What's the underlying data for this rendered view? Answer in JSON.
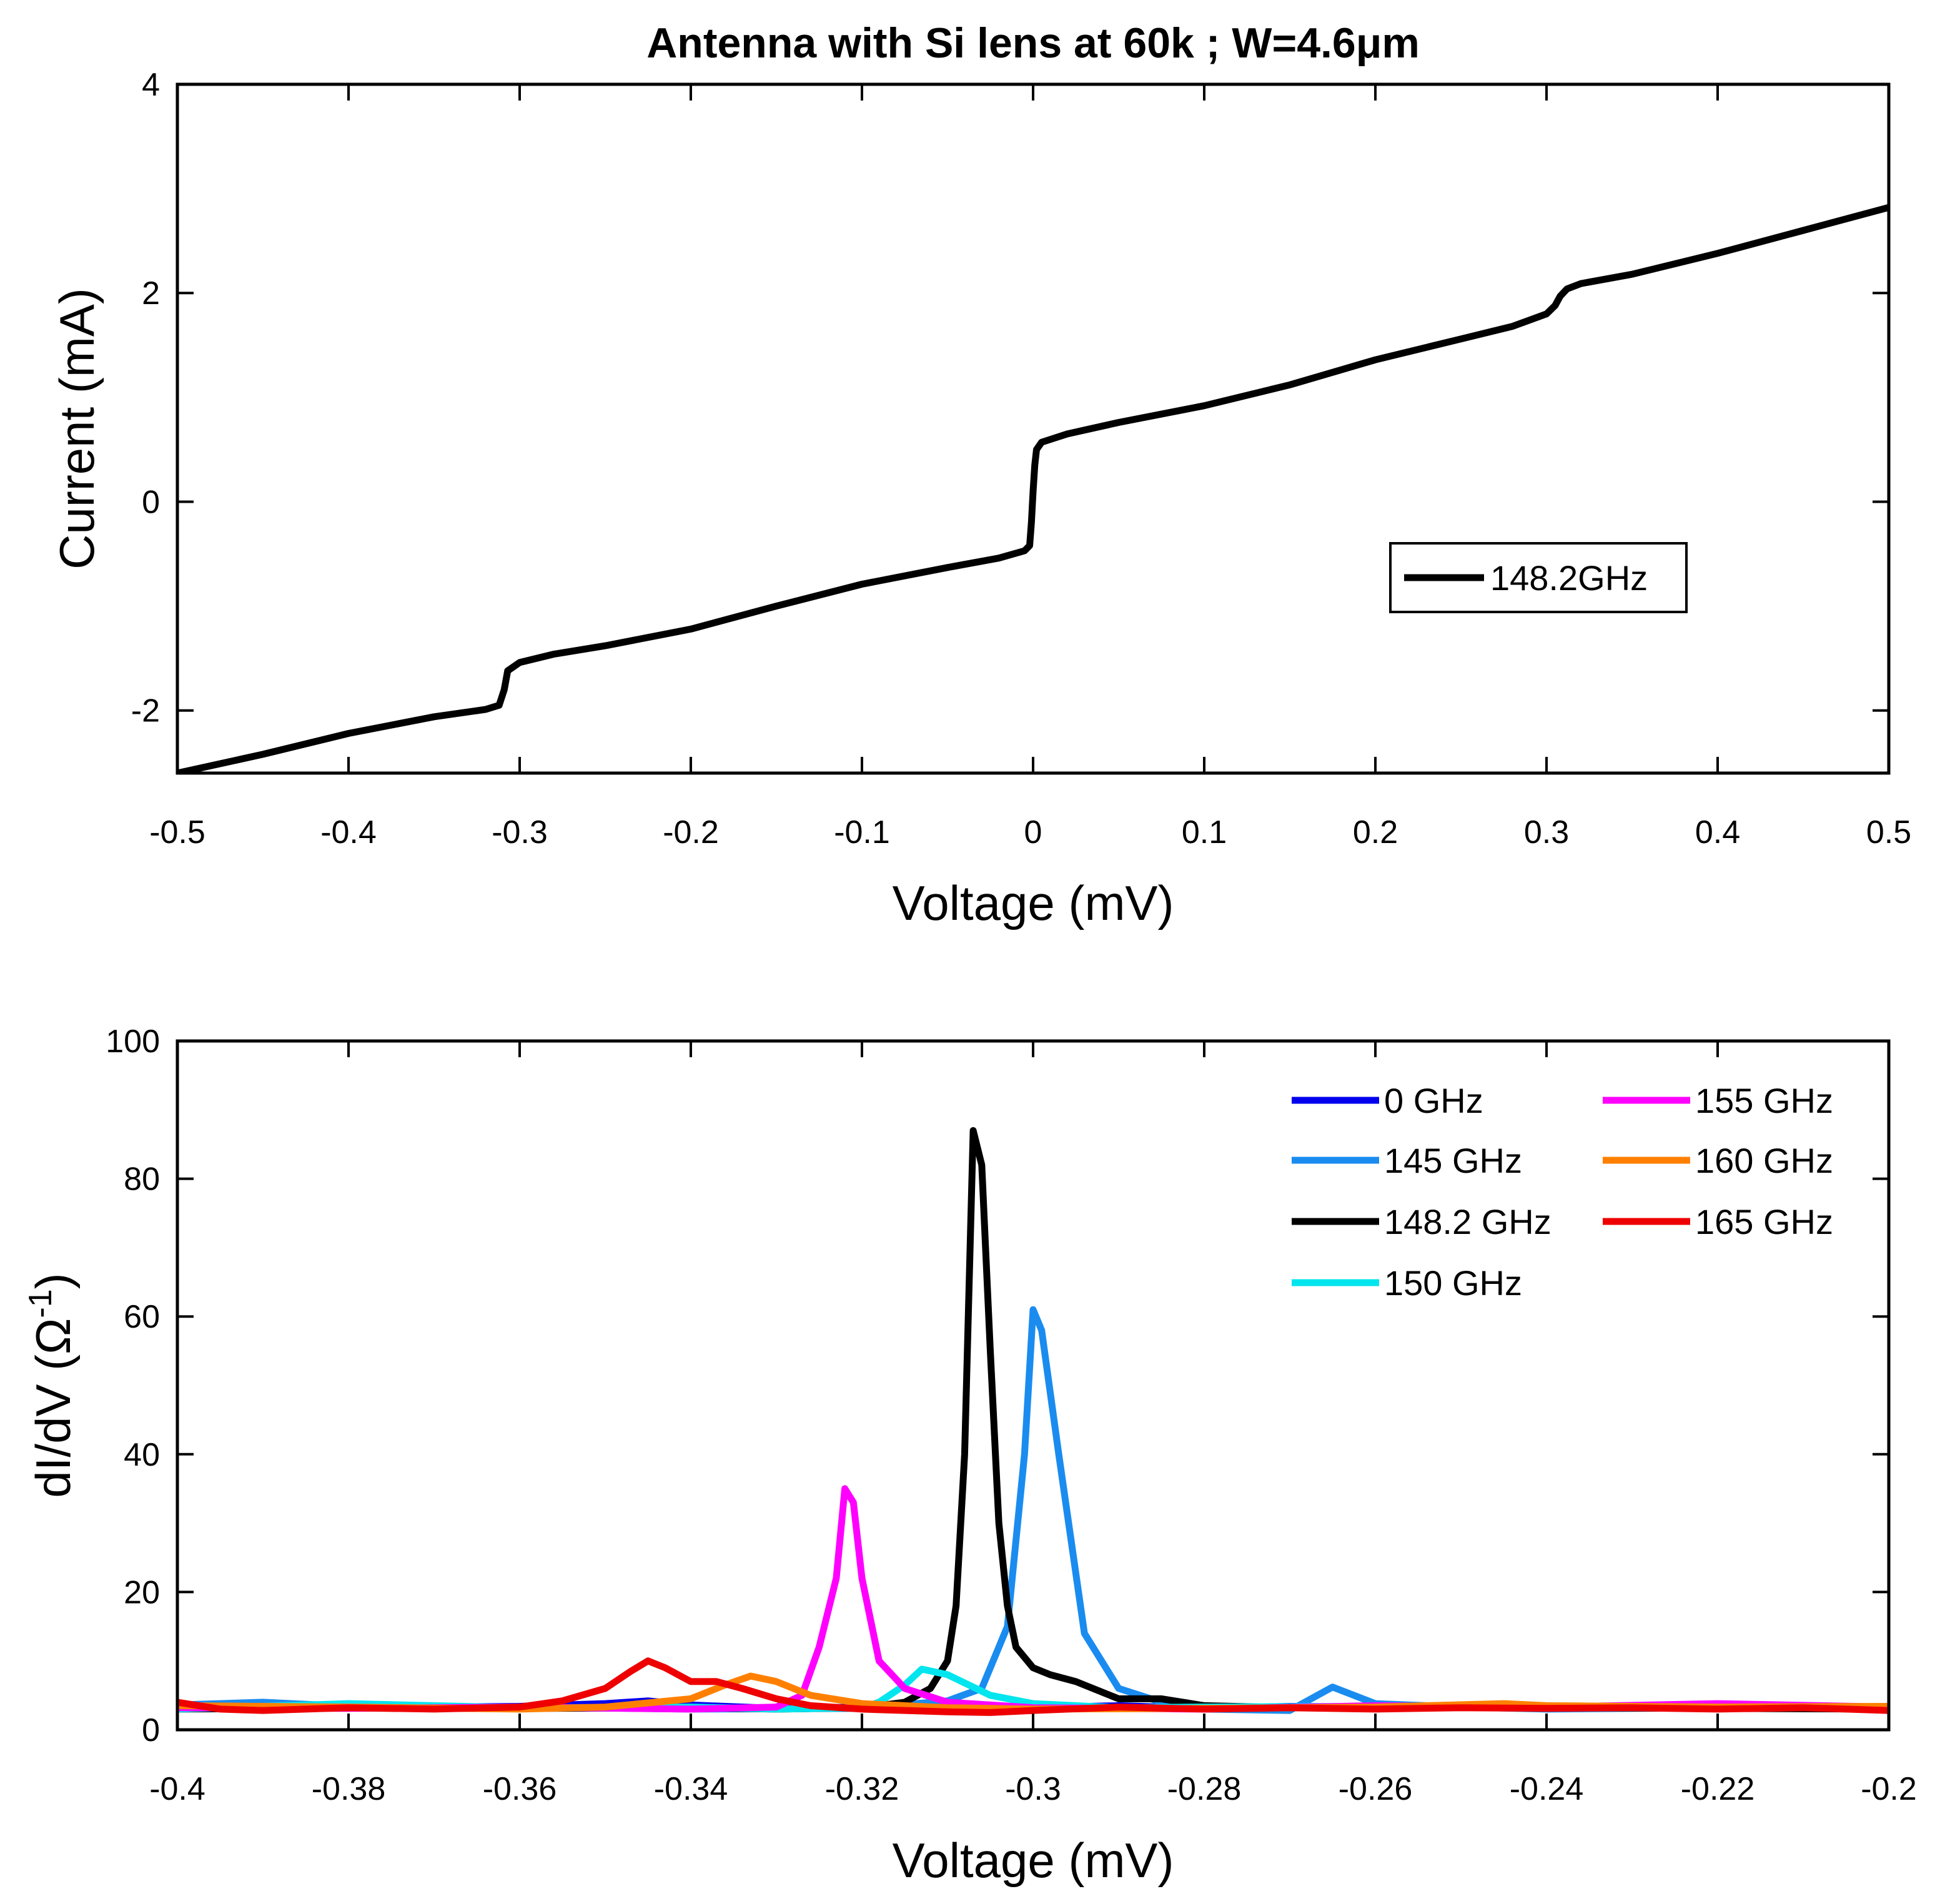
{
  "chart_data": [
    {
      "type": "line",
      "title": "Antenna with Si lens at 60k ; W=4.6μm",
      "xlabel": "Voltage (mV)",
      "ylabel": "Current (mA)",
      "xlim": [
        -0.5,
        0.5
      ],
      "ylim": [
        -2.6,
        4
      ],
      "xticks": [
        -0.5,
        -0.4,
        -0.3,
        -0.2,
        -0.1,
        0,
        0.1,
        0.2,
        0.3,
        0.4,
        0.5
      ],
      "xtick_labels": [
        "-0.5",
        "-0.4",
        "-0.3",
        "-0.2",
        "-0.1",
        "0",
        "0.1",
        "0.2",
        "0.3",
        "0.4",
        "0.5"
      ],
      "yticks": [
        -2,
        0,
        2,
        4
      ],
      "ytick_labels": [
        "-2",
        "0",
        "2",
        "4"
      ],
      "grid": false,
      "legend_position": "right",
      "series": [
        {
          "name": "148.2GHz",
          "color": "#000000",
          "x": [
            -0.5,
            -0.45,
            -0.4,
            -0.35,
            -0.32,
            -0.312,
            -0.309,
            -0.307,
            -0.3,
            -0.28,
            -0.25,
            -0.2,
            -0.15,
            -0.1,
            -0.05,
            -0.02,
            -0.005,
            -0.002,
            -0.001,
            0,
            0.001,
            0.002,
            0.005,
            0.02,
            0.05,
            0.1,
            0.15,
            0.2,
            0.25,
            0.28,
            0.3,
            0.305,
            0.308,
            0.312,
            0.32,
            0.35,
            0.4,
            0.45,
            0.5
          ],
          "y": [
            -2.6,
            -2.42,
            -2.22,
            -2.06,
            -1.99,
            -1.95,
            -1.8,
            -1.62,
            -1.54,
            -1.46,
            -1.38,
            -1.22,
            -1.0,
            -0.79,
            -0.63,
            -0.54,
            -0.47,
            -0.42,
            -0.2,
            0.1,
            0.35,
            0.5,
            0.57,
            0.65,
            0.76,
            0.92,
            1.12,
            1.36,
            1.56,
            1.68,
            1.8,
            1.88,
            1.97,
            2.04,
            2.09,
            2.18,
            2.38,
            2.6,
            2.82
          ]
        }
      ]
    },
    {
      "type": "line",
      "title": "",
      "xlabel": "Voltage (mV)",
      "ylabel": "dI/dV (Ω",
      "ylabel_sup": "-1",
      "ylabel_end": ")",
      "xlim": [
        -0.4,
        -0.2
      ],
      "ylim": [
        0,
        100
      ],
      "xticks": [
        -0.4,
        -0.38,
        -0.36,
        -0.34,
        -0.32,
        -0.3,
        -0.28,
        -0.26,
        -0.24,
        -0.22,
        -0.2
      ],
      "xtick_labels": [
        "-0.4",
        "-0.38",
        "-0.36",
        "-0.34",
        "-0.32",
        "-0.3",
        "-0.28",
        "-0.26",
        "-0.24",
        "-0.22",
        "-0.2"
      ],
      "yticks": [
        0,
        20,
        40,
        60,
        80,
        100
      ],
      "ytick_labels": [
        "0",
        "20",
        "40",
        "60",
        "80",
        "100"
      ],
      "grid": false,
      "legend_position": "top-right",
      "series": [
        {
          "name": "0 GHz",
          "color": "#0000ee",
          "x": [
            -0.4,
            -0.39,
            -0.38,
            -0.37,
            -0.36,
            -0.35,
            -0.345,
            -0.34,
            -0.33,
            -0.32,
            -0.31,
            -0.3,
            -0.29,
            -0.28,
            -0.27,
            -0.26,
            -0.25,
            -0.24,
            -0.23,
            -0.22,
            -0.21,
            -0.2
          ],
          "y": [
            3.5,
            3.2,
            3.6,
            3.3,
            3.4,
            3.8,
            4.2,
            3.6,
            3.1,
            3.3,
            3.0,
            3.2,
            3.5,
            3.1,
            3.4,
            3.3,
            3.6,
            3.2,
            3.5,
            3.3,
            3.4,
            3.2
          ]
        },
        {
          "name": "145 GHz",
          "color": "#1a8cf0",
          "x": [
            -0.4,
            -0.39,
            -0.38,
            -0.36,
            -0.34,
            -0.32,
            -0.31,
            -0.306,
            -0.303,
            -0.301,
            -0.3,
            -0.299,
            -0.297,
            -0.294,
            -0.29,
            -0.285,
            -0.28,
            -0.27,
            -0.265,
            -0.26,
            -0.25,
            -0.24,
            -0.22,
            -0.2
          ],
          "y": [
            3.6,
            4.0,
            3.4,
            3.3,
            3.0,
            3.1,
            4.2,
            6.0,
            15.0,
            40.0,
            61.0,
            58.0,
            40.0,
            14.0,
            6.0,
            4.0,
            3.0,
            2.8,
            6.2,
            3.8,
            3.3,
            3.0,
            3.2,
            3.3
          ]
        },
        {
          "name": "148.2 GHz",
          "color": "#000000",
          "x": [
            -0.4,
            -0.38,
            -0.36,
            -0.34,
            -0.33,
            -0.32,
            -0.315,
            -0.312,
            -0.31,
            -0.309,
            -0.308,
            -0.307,
            -0.306,
            -0.305,
            -0.304,
            -0.303,
            -0.302,
            -0.3,
            -0.298,
            -0.295,
            -0.29,
            -0.285,
            -0.28,
            -0.27,
            -0.26,
            -0.25,
            -0.24,
            -0.22,
            -0.2
          ],
          "y": [
            3.0,
            3.2,
            3.1,
            3.2,
            3.0,
            3.2,
            4.0,
            6.0,
            10.0,
            18.0,
            40.0,
            87.0,
            82.0,
            55.0,
            30.0,
            18.0,
            12.0,
            9.0,
            8.0,
            7.0,
            4.5,
            4.5,
            3.5,
            3.2,
            3.1,
            3.3,
            3.2,
            3.1,
            3.0
          ]
        },
        {
          "name": "150 GHz",
          "color": "#00e5ee",
          "x": [
            -0.4,
            -0.38,
            -0.36,
            -0.34,
            -0.33,
            -0.32,
            -0.318,
            -0.315,
            -0.313,
            -0.31,
            -0.305,
            -0.3,
            -0.29,
            -0.28,
            -0.26,
            -0.24,
            -0.22,
            -0.2
          ],
          "y": [
            3.0,
            3.8,
            3.2,
            3.3,
            3.0,
            3.2,
            4.0,
            6.5,
            8.8,
            8.0,
            5.0,
            3.8,
            3.2,
            3.3,
            3.4,
            3.2,
            3.5,
            3.2
          ]
        },
        {
          "name": "155 GHz",
          "color": "#ff00ff",
          "x": [
            -0.4,
            -0.38,
            -0.36,
            -0.34,
            -0.33,
            -0.327,
            -0.325,
            -0.323,
            -0.322,
            -0.321,
            -0.32,
            -0.318,
            -0.315,
            -0.31,
            -0.3,
            -0.28,
            -0.26,
            -0.24,
            -0.22,
            -0.2
          ],
          "y": [
            3.2,
            3.1,
            3.3,
            3.0,
            3.3,
            5.0,
            12.0,
            22.0,
            35.0,
            33.0,
            22.0,
            10.0,
            6.0,
            4.0,
            3.2,
            3.0,
            3.5,
            3.3,
            3.8,
            3.3
          ]
        },
        {
          "name": "160 GHz",
          "color": "#ff8000",
          "x": [
            -0.4,
            -0.38,
            -0.36,
            -0.35,
            -0.34,
            -0.336,
            -0.333,
            -0.33,
            -0.326,
            -0.32,
            -0.31,
            -0.3,
            -0.28,
            -0.26,
            -0.245,
            -0.24,
            -0.22,
            -0.2
          ],
          "y": [
            3.5,
            3.3,
            3.0,
            3.3,
            4.5,
            6.5,
            7.8,
            7.0,
            5.0,
            3.8,
            3.2,
            3.0,
            3.1,
            3.3,
            3.8,
            3.5,
            3.3,
            3.4
          ]
        },
        {
          "name": "165 GHz",
          "color": "#ee0000",
          "x": [
            -0.4,
            -0.395,
            -0.39,
            -0.38,
            -0.37,
            -0.36,
            -0.355,
            -0.35,
            -0.347,
            -0.345,
            -0.343,
            -0.34,
            -0.337,
            -0.334,
            -0.33,
            -0.326,
            -0.32,
            -0.31,
            -0.305,
            -0.3,
            -0.29,
            -0.28,
            -0.27,
            -0.26,
            -0.25,
            -0.24,
            -0.23,
            -0.22,
            -0.21,
            -0.2
          ],
          "y": [
            4.0,
            3.0,
            2.8,
            3.2,
            3.0,
            3.3,
            4.2,
            6.0,
            8.5,
            10.0,
            9.0,
            7.0,
            7.0,
            6.0,
            4.5,
            3.5,
            3.0,
            2.6,
            2.5,
            2.8,
            3.3,
            3.0,
            3.2,
            3.0,
            3.2,
            3.1,
            3.2,
            3.0,
            3.2,
            2.8
          ]
        }
      ]
    }
  ]
}
